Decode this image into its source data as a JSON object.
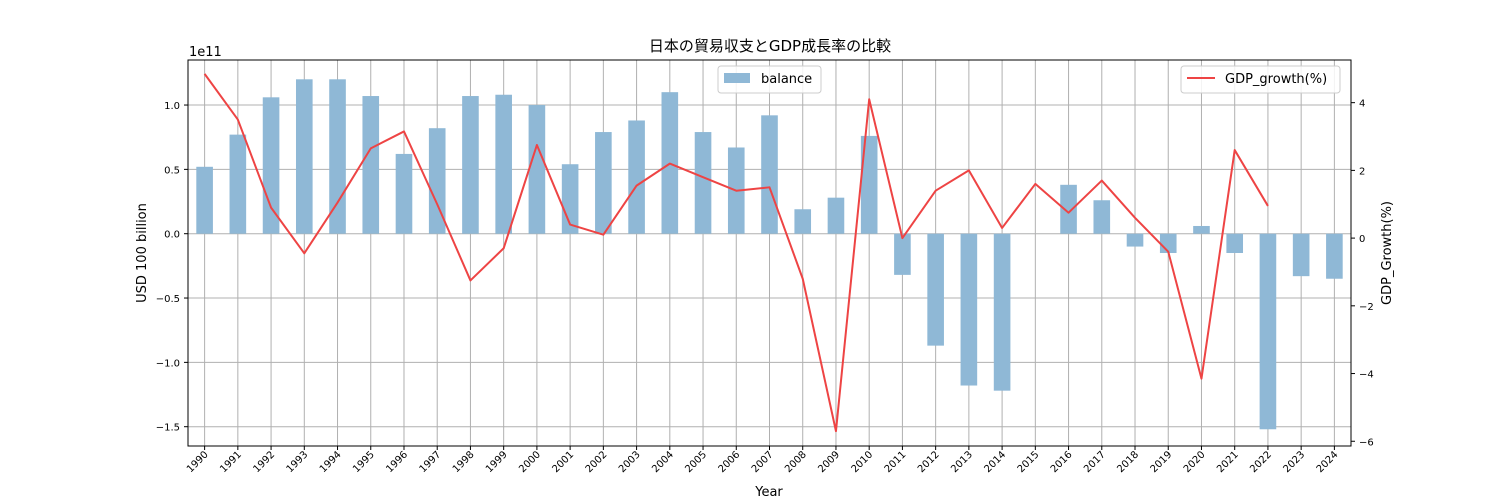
{
  "chart_data": {
    "type": "bar",
    "title": "日本の貿易収支とGDP成長率の比較",
    "xlabel": "Year",
    "ylabel": "USD 100 billion",
    "ylabel_right": "GDP_Growth(%)",
    "offset_text": "1e11",
    "categories": [
      "1990",
      "1991",
      "1992",
      "1993",
      "1994",
      "1995",
      "1996",
      "1997",
      "1998",
      "1999",
      "2000",
      "2001",
      "2002",
      "2003",
      "2004",
      "2005",
      "2006",
      "2007",
      "2008",
      "2009",
      "2010",
      "2011",
      "2012",
      "2013",
      "2014",
      "2015",
      "2016",
      "2017",
      "2018",
      "2019",
      "2020",
      "2021",
      "2022",
      "2023",
      "2024"
    ],
    "series": [
      {
        "name": "balance",
        "type": "bar",
        "axis": "left",
        "color": "#8fb8d6",
        "values": [
          0.52,
          0.77,
          1.06,
          1.2,
          1.2,
          1.07,
          0.62,
          0.82,
          1.07,
          1.08,
          1.0,
          0.54,
          0.79,
          0.88,
          1.1,
          0.79,
          0.67,
          0.92,
          0.19,
          0.28,
          0.76,
          -0.32,
          -0.87,
          -1.18,
          -1.22,
          0.0,
          0.38,
          0.26,
          -0.1,
          -0.15,
          0.06,
          -0.15,
          -1.52,
          -0.33,
          -0.35
        ]
      },
      {
        "name": "GDP_growth(%)",
        "type": "line",
        "axis": "right",
        "color": "#ee4444",
        "values": [
          4.85,
          3.5,
          0.9,
          -0.45,
          1.05,
          2.65,
          3.15,
          1.0,
          -1.25,
          -0.3,
          2.75,
          0.4,
          0.1,
          1.55,
          2.2,
          1.8,
          1.4,
          1.5,
          -1.2,
          -5.7,
          4.1,
          0.0,
          1.4,
          2.0,
          0.3,
          1.6,
          0.75,
          1.7,
          0.6,
          -0.4,
          -4.15,
          2.6,
          0.95,
          null,
          null
        ]
      }
    ],
    "yticks_left": [
      -1.5,
      -1.0,
      -0.5,
      0.0,
      0.5,
      1.0
    ],
    "yticks_left_labels": [
      "−1.5",
      "−1.0",
      "−0.5",
      "0.0",
      "0.5",
      "1.0"
    ],
    "ylim_left": [
      -1.65,
      1.35
    ],
    "yticks_right": [
      -6,
      -4,
      -2,
      0,
      2,
      4
    ],
    "yticks_right_labels": [
      "−6",
      "−4",
      "−2",
      "0",
      "2",
      "4"
    ],
    "ylim_right": [
      -6.14,
      5.26
    ],
    "grid": true,
    "legend_left": "top-center",
    "legend_right": "top-right"
  }
}
